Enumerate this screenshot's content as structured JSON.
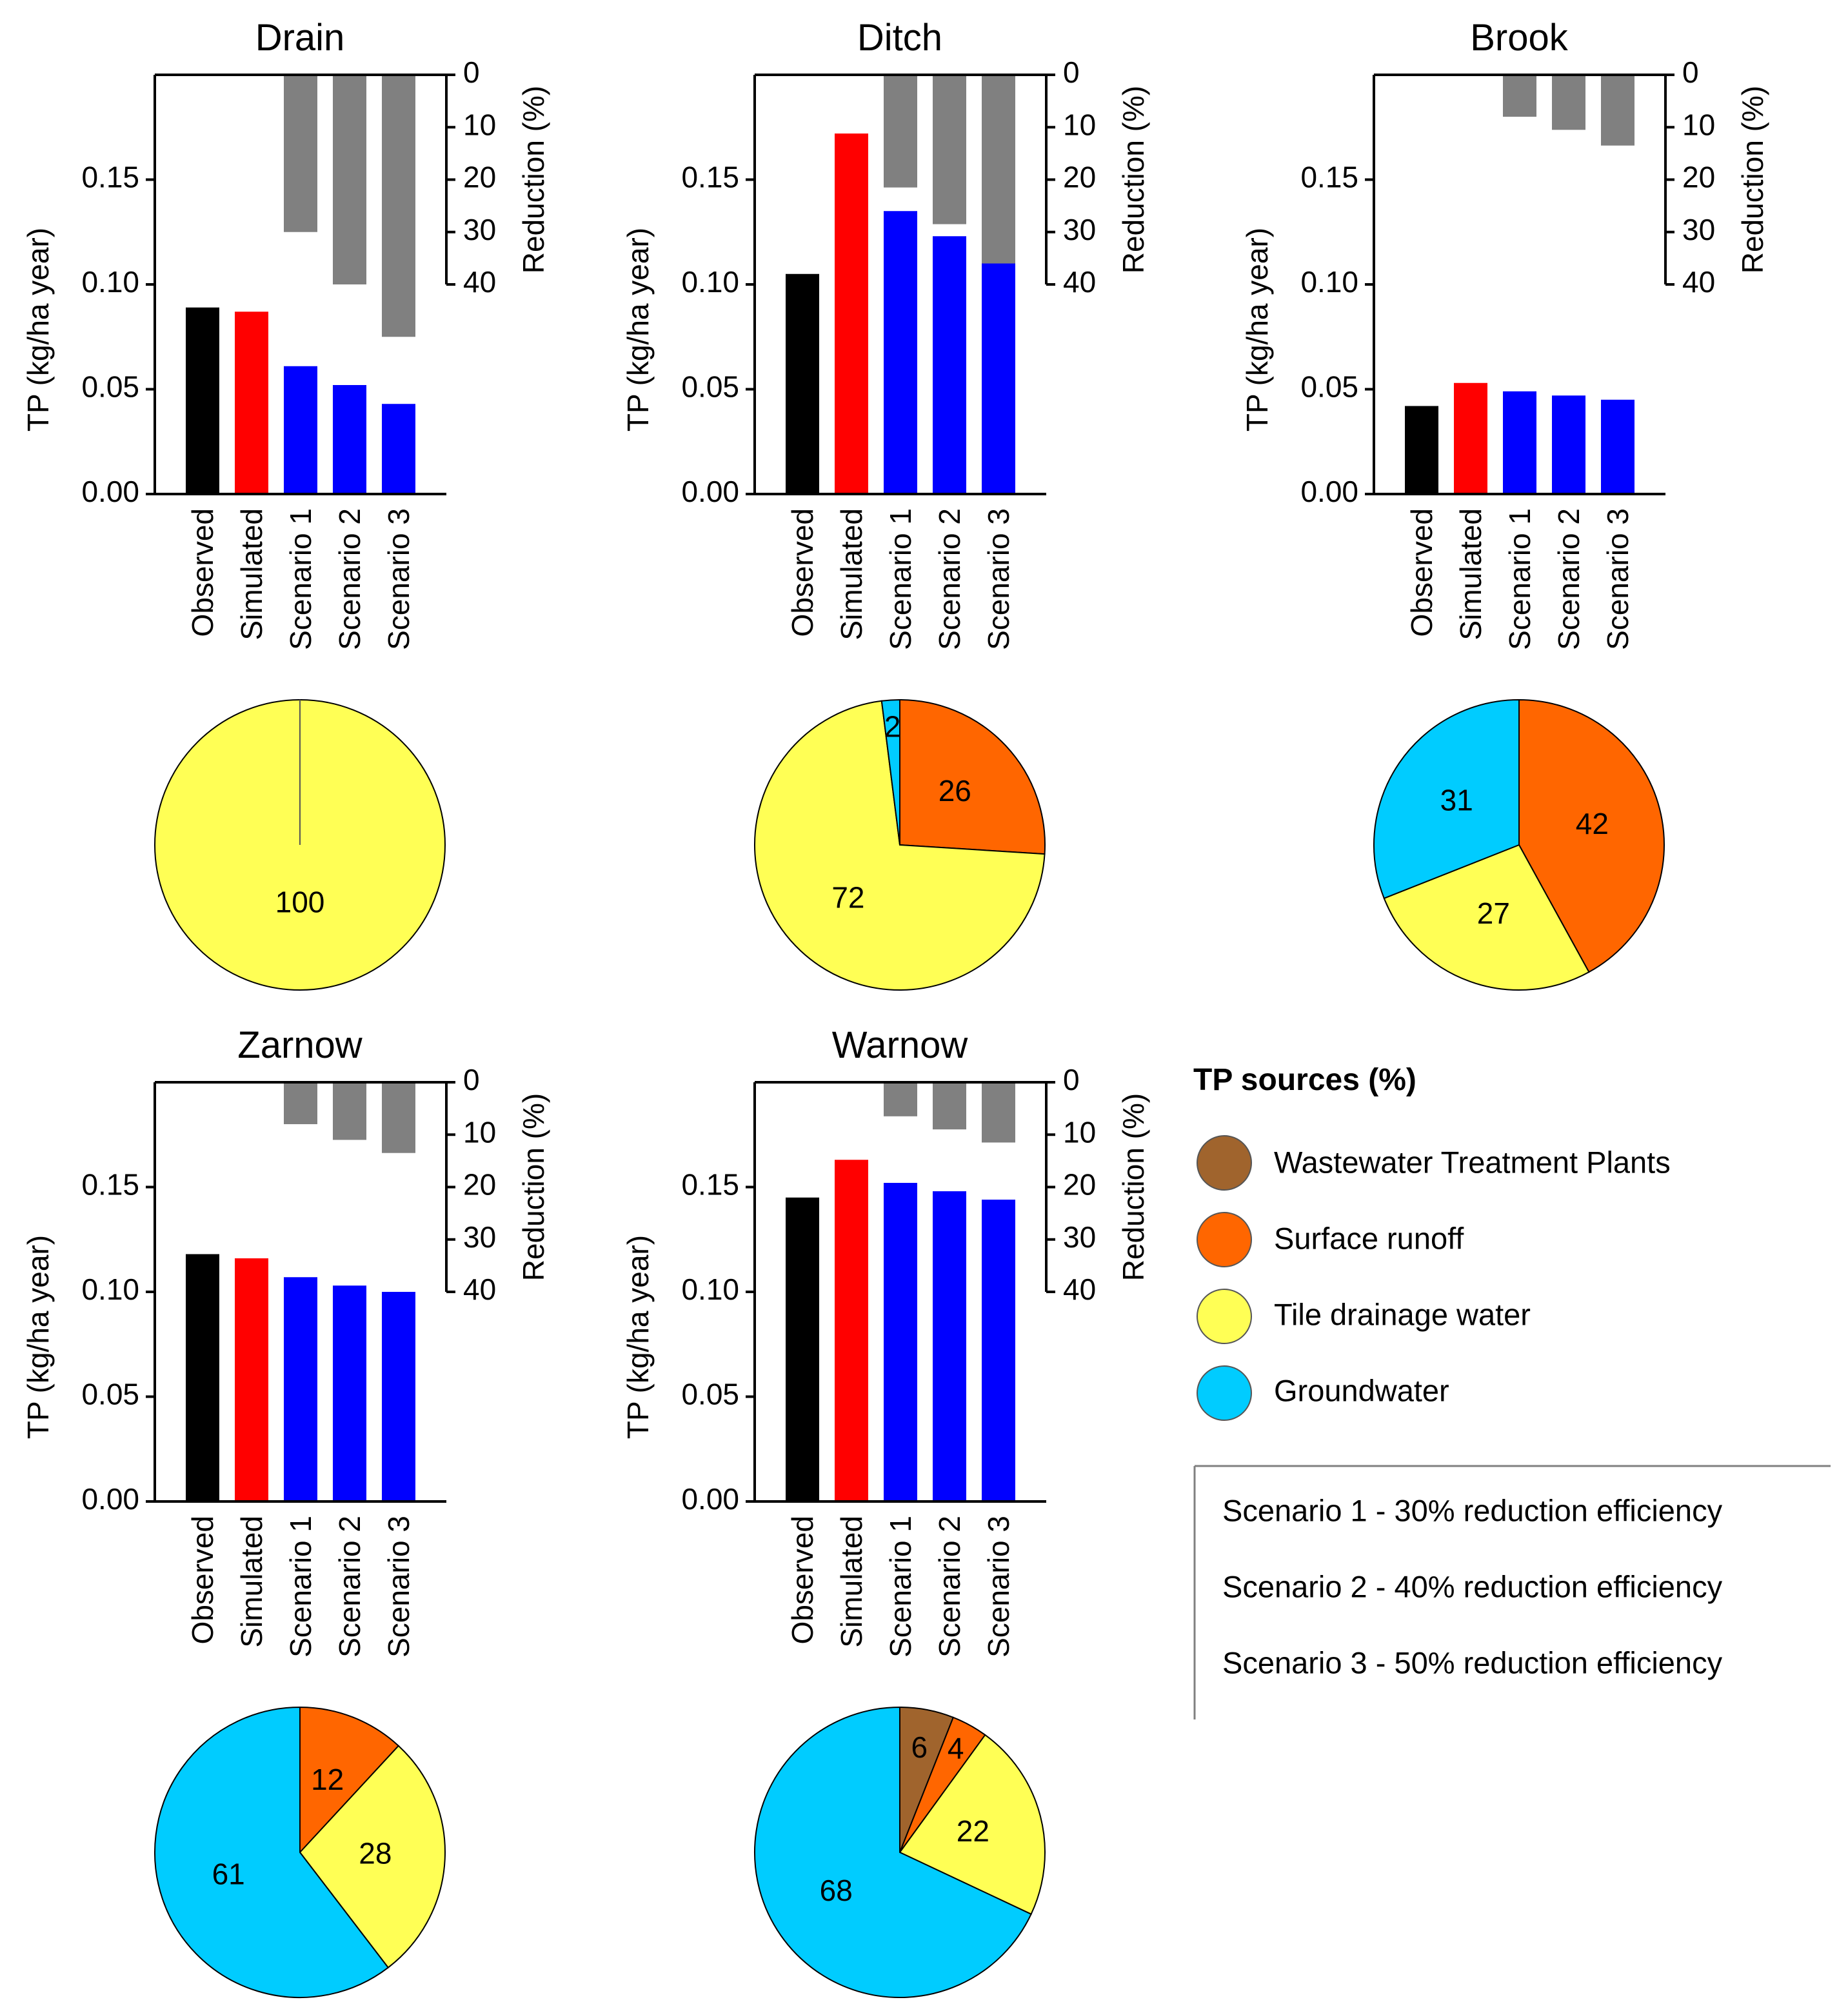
{
  "colors": {
    "observed": "#000000",
    "simulated": "#ff0000",
    "scenario": "#0000ff",
    "reduction": "#808080",
    "Wastewater Treatment Plants": "#a0642d",
    "Surface runoff": "#ff6600",
    "Tile drainage water": "#ffff55",
    "Groundwater": "#00ccff"
  },
  "chart_data": [
    {
      "type": "bar",
      "title": "Drain",
      "categories": [
        "Observed",
        "Simulated",
        "Scenario 1",
        "Scenario 2",
        "Scenario 3"
      ],
      "values": [
        0.089,
        0.087,
        0.061,
        0.052,
        0.043
      ],
      "ylabel": "TP (kg/ha year)",
      "ylim": [
        0,
        0.2
      ],
      "yticks": [
        "0.00",
        "0.05",
        "0.10",
        "0.15"
      ],
      "reduction": {
        "ylabel": "Reduction (%)",
        "ylim": [
          0,
          40
        ],
        "yticks": [
          "0",
          "10",
          "20",
          "30",
          "40"
        ],
        "values": [
          30,
          40,
          50
        ]
      },
      "sources": {
        "type": "pie",
        "slices": [
          {
            "label": "Tile drainage water",
            "value": 100
          }
        ]
      }
    },
    {
      "type": "bar",
      "title": "Ditch",
      "categories": [
        "Observed",
        "Simulated",
        "Scenario 1",
        "Scenario 2",
        "Scenario 3"
      ],
      "values": [
        0.105,
        0.172,
        0.135,
        0.123,
        0.11
      ],
      "ylabel": "TP (kg/ha year)",
      "ylim": [
        0,
        0.2
      ],
      "yticks": [
        "0.00",
        "0.05",
        "0.10",
        "0.15"
      ],
      "reduction": {
        "ylabel": "Reduction (%)",
        "ylim": [
          0,
          40
        ],
        "yticks": [
          "0",
          "10",
          "20",
          "30",
          "40"
        ],
        "values": [
          21.5,
          28.5,
          36
        ]
      },
      "sources": {
        "type": "pie",
        "slices": [
          {
            "label": "Surface runoff",
            "value": 26
          },
          {
            "label": "Tile drainage water",
            "value": 72
          },
          {
            "label": "Groundwater",
            "value": 2
          }
        ]
      }
    },
    {
      "type": "bar",
      "title": "Brook",
      "categories": [
        "Observed",
        "Simulated",
        "Scenario 1",
        "Scenario 2",
        "Scenario 3"
      ],
      "values": [
        0.042,
        0.053,
        0.049,
        0.047,
        0.045
      ],
      "ylabel": "TP (kg/ha year)",
      "ylim": [
        0,
        0.2
      ],
      "yticks": [
        "0.00",
        "0.05",
        "0.10",
        "0.15"
      ],
      "reduction": {
        "ylabel": "Reduction (%)",
        "ylim": [
          0,
          40
        ],
        "yticks": [
          "0",
          "10",
          "20",
          "30",
          "40"
        ],
        "values": [
          8,
          10.5,
          13.5
        ]
      },
      "sources": {
        "type": "pie",
        "slices": [
          {
            "label": "Surface runoff",
            "value": 42
          },
          {
            "label": "Tile drainage water",
            "value": 27
          },
          {
            "label": "Groundwater",
            "value": 31
          }
        ]
      }
    },
    {
      "type": "bar",
      "title": "Zarnow",
      "categories": [
        "Observed",
        "Simulated",
        "Scenario 1",
        "Scenario 2",
        "Scenario 3"
      ],
      "values": [
        0.118,
        0.116,
        0.107,
        0.103,
        0.1
      ],
      "ylabel": "TP (kg/ha year)",
      "ylim": [
        0,
        0.2
      ],
      "yticks": [
        "0.00",
        "0.05",
        "0.10",
        "0.15"
      ],
      "reduction": {
        "ylabel": "Reduction (%)",
        "ylim": [
          0,
          40
        ],
        "yticks": [
          "0",
          "10",
          "20",
          "30",
          "40"
        ],
        "values": [
          8,
          11,
          13.5
        ]
      },
      "sources": {
        "type": "pie",
        "slices": [
          {
            "label": "Surface runoff",
            "value": 12
          },
          {
            "label": "Tile drainage water",
            "value": 28
          },
          {
            "label": "Groundwater",
            "value": 61
          }
        ]
      }
    },
    {
      "type": "bar",
      "title": "Warnow",
      "categories": [
        "Observed",
        "Simulated",
        "Scenario 1",
        "Scenario 2",
        "Scenario 3"
      ],
      "values": [
        0.145,
        0.163,
        0.152,
        0.148,
        0.144
      ],
      "ylabel": "TP (kg/ha year)",
      "ylim": [
        0,
        0.2
      ],
      "yticks": [
        "0.00",
        "0.05",
        "0.10",
        "0.15"
      ],
      "reduction": {
        "ylabel": "Reduction (%)",
        "ylim": [
          0,
          40
        ],
        "yticks": [
          "0",
          "10",
          "20",
          "30",
          "40"
        ],
        "values": [
          6.5,
          9,
          11.5
        ]
      },
      "sources": {
        "type": "pie",
        "slices": [
          {
            "label": "Wastewater Treatment Plants",
            "value": 6
          },
          {
            "label": "Surface runoff",
            "value": 4
          },
          {
            "label": "Tile drainage water",
            "value": 22
          },
          {
            "label": "Groundwater",
            "value": 68
          }
        ]
      }
    }
  ],
  "legend": {
    "title": "TP sources (%)",
    "items": [
      "Wastewater Treatment Plants",
      "Surface runoff",
      "Tile drainage water",
      "Groundwater"
    ]
  },
  "scenario_notes": [
    "Scenario 1 - 30% reduction efficiency",
    "Scenario 2 - 40% reduction efficiency",
    "Scenario 3 - 50% reduction efficiency"
  ]
}
